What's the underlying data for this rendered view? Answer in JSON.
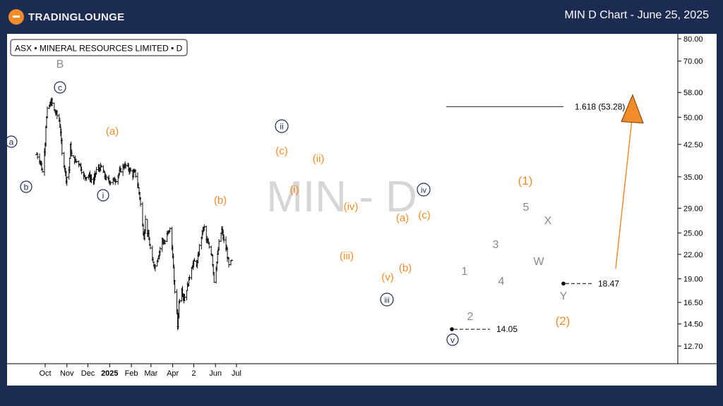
{
  "header": {
    "brand": "TRADINGLOUNGE",
    "title": "MIN D Chart - June 25, 2025"
  },
  "legend": {
    "symbol": "ASX • MINERAL RESOURCES LIMITED • D"
  },
  "watermark": "MIN - D",
  "chart_data": {
    "type": "ohlc",
    "title": "ASX • MINERAL RESOURCES LIMITED • D",
    "y_scale": "log",
    "y_ticks": [
      "80.00",
      "70.00",
      "58.00",
      "50.00",
      "42.50",
      "35.00",
      "29.00",
      "25.00",
      "22.00",
      "19.00",
      "16.50",
      "14.50",
      "12.70"
    ],
    "x_ticks": [
      "Oct",
      "Nov",
      "Dec",
      "2025",
      "Feb",
      "Mar",
      "Apr",
      "2",
      "Jun",
      "Jul"
    ],
    "close_series": [
      [
        "2024-09-19",
        40.0
      ],
      [
        "2024-09-24",
        38.5
      ],
      [
        "2024-09-27",
        36.0
      ],
      [
        "2024-10-01",
        43.0
      ],
      [
        "2024-10-02",
        47.5
      ],
      [
        "2024-10-04",
        52.0
      ],
      [
        "2024-10-08",
        54.0
      ],
      [
        "2024-10-10",
        55.0
      ],
      [
        "2024-10-14",
        52.0
      ],
      [
        "2024-10-17",
        51.0
      ],
      [
        "2024-10-21",
        49.0
      ],
      [
        "2024-10-23",
        46.0
      ],
      [
        "2024-10-25",
        40.0
      ],
      [
        "2024-10-29",
        37.0
      ],
      [
        "2024-10-31",
        34.5
      ],
      [
        "2024-11-04",
        36.5
      ],
      [
        "2024-11-06",
        42.0
      ],
      [
        "2024-11-08",
        39.5
      ],
      [
        "2024-11-13",
        38.5
      ],
      [
        "2024-11-19",
        38.0
      ],
      [
        "2024-11-25",
        35.0
      ],
      [
        "2024-12-02",
        35.2
      ],
      [
        "2024-12-09",
        34.0
      ],
      [
        "2024-12-13",
        36.5
      ],
      [
        "2024-12-20",
        37.0
      ],
      [
        "2024-12-27",
        34.5
      ],
      [
        "2025-01-03",
        34.0
      ],
      [
        "2025-01-10",
        34.5
      ],
      [
        "2025-01-17",
        36.5
      ],
      [
        "2025-01-22",
        37.5
      ],
      [
        "2025-01-27",
        37.0
      ],
      [
        "2025-02-03",
        35.5
      ],
      [
        "2025-02-06",
        36.0
      ],
      [
        "2025-02-10",
        33.5
      ],
      [
        "2025-02-13",
        31.0
      ],
      [
        "2025-02-17",
        26.0
      ],
      [
        "2025-02-19",
        24.5
      ],
      [
        "2025-02-21",
        27.0
      ],
      [
        "2025-02-26",
        24.0
      ],
      [
        "2025-03-03",
        21.0
      ],
      [
        "2025-03-07",
        20.5
      ],
      [
        "2025-03-12",
        22.0
      ],
      [
        "2025-03-17",
        24.0
      ],
      [
        "2025-03-20",
        23.5
      ],
      [
        "2025-03-25",
        25.0
      ],
      [
        "2025-03-28",
        25.5
      ],
      [
        "2025-04-01",
        22.0
      ],
      [
        "2025-04-03",
        18.5
      ],
      [
        "2025-04-07",
        15.5
      ],
      [
        "2025-04-08",
        14.3
      ],
      [
        "2025-04-10",
        16.5
      ],
      [
        "2025-04-14",
        18.0
      ],
      [
        "2025-04-17",
        16.8
      ],
      [
        "2025-04-23",
        18.5
      ],
      [
        "2025-04-28",
        20.5
      ],
      [
        "2025-05-02",
        21.0
      ],
      [
        "2025-05-06",
        20.8
      ],
      [
        "2025-05-09",
        23.0
      ],
      [
        "2025-05-14",
        25.5
      ],
      [
        "2025-05-16",
        25.8
      ],
      [
        "2025-05-19",
        24.0
      ],
      [
        "2025-05-23",
        23.0
      ],
      [
        "2025-05-27",
        22.0
      ],
      [
        "2025-05-30",
        18.8
      ],
      [
        "2025-06-03",
        21.0
      ],
      [
        "2025-06-06",
        23.5
      ],
      [
        "2025-06-10",
        25.5
      ],
      [
        "2025-06-13",
        23.8
      ],
      [
        "2025-06-17",
        22.5
      ],
      [
        "2025-06-20",
        20.5
      ],
      [
        "2025-06-25",
        21.2
      ]
    ],
    "levels": [
      {
        "label": "1.618 (53.28)",
        "value": 53.28
      },
      {
        "label": "18.47",
        "value": 18.47
      },
      {
        "label": "14.05",
        "value": 14.05
      }
    ],
    "wave_labels": {
      "circled": [
        "a",
        "b",
        "c",
        "i",
        "ii",
        "iii",
        "iv",
        "v"
      ],
      "orange": [
        "(a)",
        "(b)",
        "(c)",
        "(i)",
        "(ii)",
        "(iii)",
        "(iv)",
        "(v)",
        "(a)",
        "(b)",
        "(c)",
        "(1)",
        "(2)"
      ],
      "gray": [
        "B",
        "1",
        "2",
        "3",
        "4",
        "5",
        "W",
        "X",
        "Y"
      ]
    },
    "projection": {
      "from_value": 20.2,
      "to_value": 53.0,
      "color": "#f28c28"
    },
    "grid": false
  },
  "colors": {
    "background": "#1c2b52",
    "panel": "#ffffff",
    "orange": "#f28c28",
    "navy": "#1c2b52",
    "gray": "#8a8a8a"
  }
}
